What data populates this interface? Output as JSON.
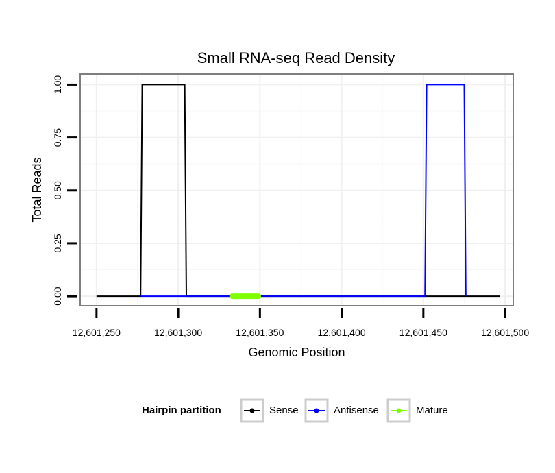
{
  "chart_data": {
    "type": "line",
    "title": "Small RNA-seq Read Density",
    "xlabel": "Genomic Position",
    "ylabel": "Total Reads",
    "xlim": [
      12601240,
      12601505
    ],
    "ylim": [
      -0.045,
      1.05
    ],
    "x_ticks": [
      12601250,
      12601300,
      12601350,
      12601400,
      12601450,
      12601500
    ],
    "x_tick_labels": [
      "12,601,250",
      "12,601,300",
      "12,601,350",
      "12,601,400",
      "12,601,450",
      "12,601,500"
    ],
    "y_ticks": [
      0,
      0.25,
      0.5,
      0.75,
      1.0
    ],
    "y_tick_labels": [
      "0.00",
      "0.25",
      "0.50",
      "0.75",
      "1.00"
    ],
    "grid": true,
    "legend": {
      "title": "Hairpin partition",
      "position": "bottom"
    },
    "series": [
      {
        "name": "Sense",
        "color": "#000000",
        "x": [
          12601250,
          12601277,
          12601278,
          12601304,
          12601305,
          12601497
        ],
        "y": [
          0,
          0,
          1,
          1,
          0,
          0
        ]
      },
      {
        "name": "Antisense",
        "color": "#0000ff",
        "x": [
          12601277,
          12601304,
          12601451,
          12601452,
          12601475,
          12601476
        ],
        "y": [
          0,
          0,
          0,
          1,
          1,
          0
        ]
      },
      {
        "name": "Mature",
        "color": "#7fff00",
        "x": [
          12601333,
          12601349
        ],
        "y": [
          0,
          0
        ]
      }
    ]
  }
}
